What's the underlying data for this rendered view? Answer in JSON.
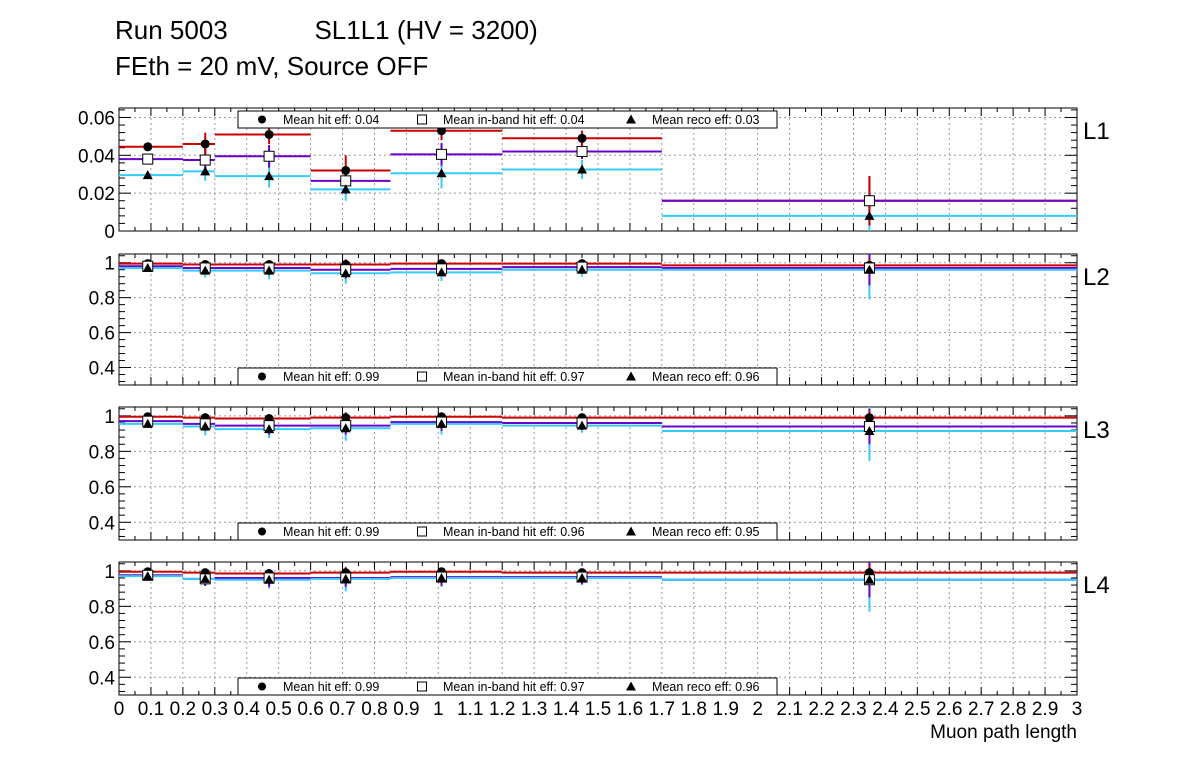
{
  "title": {
    "run": "Run 5003",
    "chamber": "SL1L1 (HV = 3200)",
    "conditions": "FEth = 20 mV, Source OFF"
  },
  "colors": {
    "hit": "#cc0000",
    "inband": "#6b00cc",
    "reco": "#33ccff"
  },
  "chart_data": [
    {
      "type": "line",
      "panel": "L1",
      "xlabel": "Muon path length",
      "ylim": [
        0,
        0.065
      ],
      "yticks": [
        0,
        0.02,
        0.04,
        0.06
      ],
      "ytick_labels": [
        "0",
        "0.02",
        "0.04",
        "0.06"
      ],
      "grid": true,
      "legend_position": "top",
      "legend": [
        "Mean hit  eff: 0.04",
        "Mean in-band hit eff: 0.04",
        "Mean reco eff: 0.03"
      ],
      "bins": [
        [
          0,
          0.2
        ],
        [
          0.2,
          0.3
        ],
        [
          0.3,
          0.6
        ],
        [
          0.6,
          0.85
        ],
        [
          0.85,
          1.2
        ],
        [
          1.2,
          1.7
        ],
        [
          1.7,
          3.0
        ]
      ],
      "points_x": [
        0.09,
        0.27,
        0.47,
        0.71,
        1.01,
        1.45,
        2.35
      ],
      "series": [
        {
          "name": "Mean hit  eff: 0.04",
          "marker": "circle",
          "values": [
            0.0445,
            0.046,
            0.051,
            0.032,
            0.053,
            0.049,
            0.016
          ],
          "errors": [
            0.002,
            0.006,
            0.005,
            0.008,
            0.005,
            0.004,
            0.013
          ]
        },
        {
          "name": "Mean in-band hit eff: 0.04",
          "marker": "square",
          "values": [
            0.038,
            0.0375,
            0.0395,
            0.0265,
            0.0405,
            0.042,
            0.016
          ],
          "errors": [
            0.002,
            0.006,
            0.006,
            0.007,
            0.006,
            0.004,
            0.013
          ]
        },
        {
          "name": "Mean reco eff: 0.03",
          "marker": "triangle",
          "values": [
            0.0295,
            0.0315,
            0.029,
            0.022,
            0.0305,
            0.0325,
            0.008
          ],
          "errors": [
            0.002,
            0.005,
            0.006,
            0.006,
            0.008,
            0.005,
            0.009
          ]
        }
      ]
    },
    {
      "type": "line",
      "panel": "L2",
      "ylim": [
        0.3,
        1.05
      ],
      "yticks": [
        0.4,
        0.6,
        0.8,
        1.0
      ],
      "ytick_labels": [
        "0.4",
        "0.6",
        "0.8",
        "1"
      ],
      "grid": true,
      "legend_position": "bottom",
      "legend": [
        "Mean hit  eff: 0.99",
        "Mean in-band hit eff: 0.97",
        "Mean reco eff: 0.96"
      ],
      "bins": [
        [
          0,
          0.2
        ],
        [
          0.2,
          0.3
        ],
        [
          0.3,
          0.6
        ],
        [
          0.6,
          0.85
        ],
        [
          0.85,
          1.2
        ],
        [
          1.2,
          1.7
        ],
        [
          1.7,
          3.0
        ]
      ],
      "points_x": [
        0.09,
        0.27,
        0.47,
        0.71,
        1.01,
        1.45,
        2.35
      ],
      "series": [
        {
          "name": "Mean hit  eff: 0.99",
          "marker": "circle",
          "values": [
            0.995,
            0.99,
            0.99,
            0.99,
            0.995,
            0.995,
            0.985
          ],
          "errors": [
            0.01,
            0.02,
            0.02,
            0.03,
            0.02,
            0.02,
            0.04
          ]
        },
        {
          "name": "Mean in-band hit eff: 0.97",
          "marker": "square",
          "values": [
            0.98,
            0.97,
            0.97,
            0.96,
            0.965,
            0.975,
            0.97
          ],
          "errors": [
            0.02,
            0.03,
            0.04,
            0.05,
            0.04,
            0.03,
            0.1
          ]
        },
        {
          "name": "Mean reco eff: 0.96",
          "marker": "triangle",
          "values": [
            0.97,
            0.955,
            0.955,
            0.94,
            0.945,
            0.96,
            0.96
          ],
          "errors": [
            0.02,
            0.04,
            0.05,
            0.06,
            0.05,
            0.04,
            0.17
          ]
        }
      ]
    },
    {
      "type": "line",
      "panel": "L3",
      "ylim": [
        0.3,
        1.05
      ],
      "yticks": [
        0.4,
        0.6,
        0.8,
        1.0
      ],
      "ytick_labels": [
        "0.4",
        "0.6",
        "0.8",
        "1"
      ],
      "grid": true,
      "legend_position": "bottom",
      "legend": [
        "Mean hit  eff: 0.99",
        "Mean in-band hit eff: 0.96",
        "Mean reco eff: 0.95"
      ],
      "bins": [
        [
          0,
          0.2
        ],
        [
          0.2,
          0.3
        ],
        [
          0.3,
          0.6
        ],
        [
          0.6,
          0.85
        ],
        [
          0.85,
          1.2
        ],
        [
          1.2,
          1.7
        ],
        [
          1.7,
          3.0
        ]
      ],
      "points_x": [
        0.09,
        0.27,
        0.47,
        0.71,
        1.01,
        1.45,
        2.35
      ],
      "series": [
        {
          "name": "Mean hit  eff: 0.99",
          "marker": "circle",
          "values": [
            0.995,
            0.99,
            0.985,
            0.99,
            0.995,
            0.99,
            0.99
          ],
          "errors": [
            0.01,
            0.02,
            0.02,
            0.03,
            0.02,
            0.02,
            0.04
          ]
        },
        {
          "name": "Mean in-band hit eff: 0.96",
          "marker": "square",
          "values": [
            0.97,
            0.955,
            0.945,
            0.945,
            0.965,
            0.96,
            0.94
          ],
          "errors": [
            0.02,
            0.04,
            0.05,
            0.05,
            0.05,
            0.04,
            0.1
          ]
        },
        {
          "name": "Mean reco eff: 0.95",
          "marker": "triangle",
          "values": [
            0.955,
            0.94,
            0.925,
            0.93,
            0.955,
            0.945,
            0.915
          ],
          "errors": [
            0.02,
            0.05,
            0.05,
            0.07,
            0.06,
            0.04,
            0.17
          ]
        }
      ]
    },
    {
      "type": "line",
      "panel": "L4",
      "ylim": [
        0.3,
        1.05
      ],
      "yticks": [
        0.4,
        0.6,
        0.8,
        1.0
      ],
      "ytick_labels": [
        "0.4",
        "0.6",
        "0.8",
        "1"
      ],
      "xlim": [
        0,
        3
      ],
      "xticks": [
        0,
        0.1,
        0.2,
        0.3,
        0.4,
        0.5,
        0.6,
        0.7,
        0.8,
        0.9,
        1,
        1.1,
        1.2,
        1.3,
        1.4,
        1.5,
        1.6,
        1.7,
        1.8,
        1.9,
        2,
        2.1,
        2.2,
        2.3,
        2.4,
        2.5,
        2.6,
        2.7,
        2.8,
        2.9,
        3
      ],
      "xtick_labels": [
        "0",
        "0.1",
        "0.2",
        "0.3",
        "0.4",
        "0.5",
        "0.6",
        "0.7",
        "0.8",
        "0.9",
        "1",
        "1.1",
        "1.2",
        "1.3",
        "1.4",
        "1.5",
        "1.6",
        "1.7",
        "1.8",
        "1.9",
        "2",
        "2.1",
        "2.2",
        "2.3",
        "2.4",
        "2.5",
        "2.6",
        "2.7",
        "2.8",
        "2.9",
        "3"
      ],
      "xlabel": "Muon path length",
      "grid": true,
      "legend_position": "bottom",
      "legend": [
        "Mean hit  eff: 0.99",
        "Mean in-band hit eff: 0.97",
        "Mean reco eff: 0.96"
      ],
      "bins": [
        [
          0,
          0.2
        ],
        [
          0.2,
          0.3
        ],
        [
          0.3,
          0.6
        ],
        [
          0.6,
          0.85
        ],
        [
          0.85,
          1.2
        ],
        [
          1.2,
          1.7
        ],
        [
          1.7,
          3.0
        ]
      ],
      "points_x": [
        0.09,
        0.27,
        0.47,
        0.71,
        1.01,
        1.45,
        2.35
      ],
      "series": [
        {
          "name": "Mean hit  eff: 0.99",
          "marker": "circle",
          "values": [
            0.995,
            0.99,
            0.985,
            0.99,
            0.995,
            0.99,
            0.99
          ],
          "errors": [
            0.01,
            0.02,
            0.02,
            0.03,
            0.02,
            0.02,
            0.04
          ]
        },
        {
          "name": "Mean in-band hit eff: 0.97",
          "marker": "square",
          "values": [
            0.975,
            0.955,
            0.96,
            0.96,
            0.965,
            0.965,
            0.95
          ],
          "errors": [
            0.02,
            0.04,
            0.05,
            0.05,
            0.05,
            0.04,
            0.1
          ]
        },
        {
          "name": "Mean reco eff: 0.96",
          "marker": "triangle",
          "values": [
            0.97,
            0.955,
            0.95,
            0.955,
            0.96,
            0.96,
            0.95
          ],
          "errors": [
            0.02,
            0.04,
            0.05,
            0.07,
            0.05,
            0.04,
            0.18
          ]
        }
      ]
    }
  ]
}
